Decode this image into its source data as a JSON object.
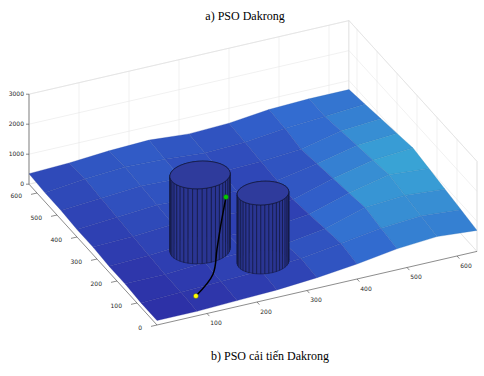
{
  "chart_data": {
    "type": "surface3d",
    "annotations": [
      "a) PSO Dakrong",
      "b) PSO cải tiến Dakrong"
    ],
    "xlim": [
      0,
      640
    ],
    "ylim": [
      0,
      640
    ],
    "zlim": [
      0,
      3000
    ],
    "xticks": [
      100,
      200,
      300,
      400,
      500,
      600
    ],
    "yticks": [
      0,
      100,
      200,
      300,
      400,
      500,
      600
    ],
    "zticks": [
      0,
      1000,
      2000,
      3000
    ],
    "grid": true,
    "surface": {
      "x": [
        0,
        80,
        160,
        240,
        320,
        400,
        480,
        560,
        640
      ],
      "y": [
        0,
        80,
        160,
        240,
        320,
        400,
        480,
        560,
        640
      ],
      "z": [
        [
          150,
          150,
          200,
          250,
          350,
          500,
          700,
          800,
          700
        ],
        [
          150,
          200,
          250,
          300,
          400,
          600,
          800,
          900,
          800
        ],
        [
          200,
          200,
          300,
          350,
          300,
          500,
          900,
          1000,
          900
        ],
        [
          200,
          250,
          350,
          300,
          250,
          400,
          800,
          1100,
          1000
        ],
        [
          250,
          300,
          400,
          350,
          250,
          300,
          700,
          1000,
          1100
        ],
        [
          250,
          350,
          450,
          400,
          300,
          350,
          600,
          900,
          1000
        ],
        [
          300,
          400,
          500,
          450,
          350,
          400,
          500,
          800,
          900
        ],
        [
          300,
          450,
          550,
          500,
          400,
          450,
          600,
          700,
          800
        ],
        [
          350,
          400,
          500,
          550,
          450,
          500,
          650,
          700,
          700
        ]
      ]
    },
    "obstacles": [
      {
        "x": 184,
        "y": 245,
        "radius": 56,
        "height": 2500
      },
      {
        "x": 270,
        "y": 145,
        "radius": 48,
        "height": 2300
      }
    ],
    "path": {
      "x": [
        99,
        160,
        200,
        240,
        284
      ],
      "y": [
        53,
        120,
        200,
        280,
        365
      ],
      "z": [
        200,
        200,
        300,
        400,
        500
      ],
      "color": "#000000"
    },
    "markers": [
      {
        "x": 99,
        "y": 53,
        "z": 200,
        "color": "#ffff00"
      },
      {
        "x": 284,
        "y": 365,
        "z": 500,
        "color": "#00cc00"
      }
    ]
  }
}
